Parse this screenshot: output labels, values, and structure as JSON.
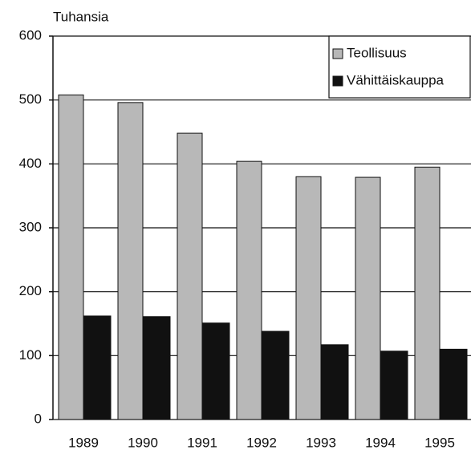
{
  "chart_data": {
    "type": "bar",
    "y_label": "Tuhansia",
    "categories": [
      "1989",
      "1990",
      "1991",
      "1992",
      "1993",
      "1994",
      "1995"
    ],
    "series": [
      {
        "name": "Teollisuus",
        "color": "#b8b8b8",
        "values": [
          508,
          496,
          448,
          404,
          380,
          379,
          395
        ]
      },
      {
        "name": "Vähittäiskauppa",
        "color": "#111111",
        "values": [
          162,
          161,
          151,
          138,
          117,
          107,
          110
        ]
      }
    ],
    "ylim": [
      0,
      600
    ],
    "yticks": [
      0,
      100,
      200,
      300,
      400,
      500,
      600
    ],
    "grid": true,
    "legend": "upper right"
  }
}
